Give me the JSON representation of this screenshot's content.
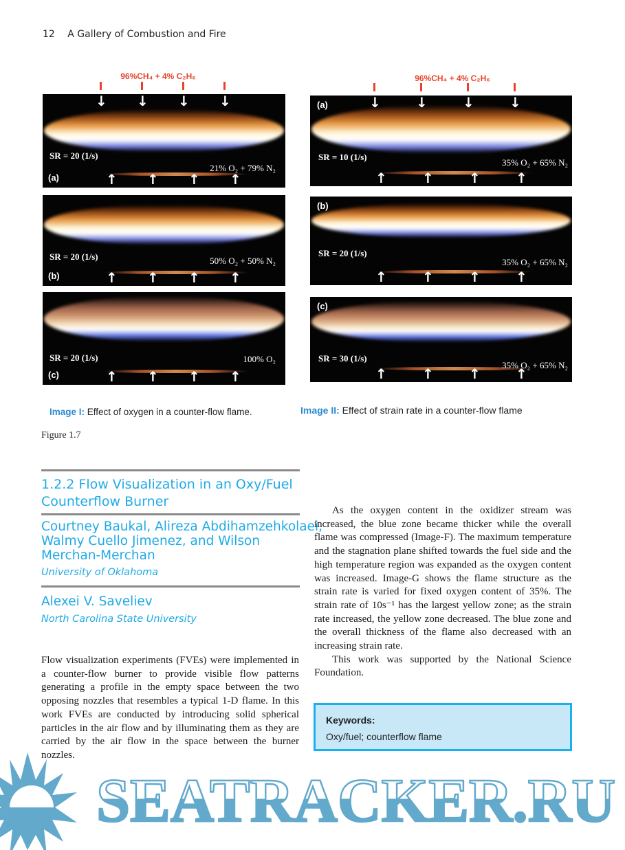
{
  "header": {
    "page_number": "12",
    "running_title": "A Gallery of Combustion and Fire"
  },
  "figure": {
    "fuel_label": "96%CH₄ + 4% C₂H₆",
    "left_panels": [
      {
        "tag": "(a)",
        "sr": "SR = 20 (1/s)",
        "oxidizer": "21% O₂ + 79% N₂"
      },
      {
        "tag": "(b)",
        "sr": "SR = 20 (1/s)",
        "oxidizer": "50% O₂ + 50% N₂"
      },
      {
        "tag": "(c)",
        "sr": "SR = 20 (1/s)",
        "oxidizer": "100% O₂"
      }
    ],
    "right_panels": [
      {
        "tag": "(a)",
        "sr": "SR = 10 (1/s)",
        "oxidizer": "35% O₂ + 65% N₂"
      },
      {
        "tag": "(b)",
        "sr": "SR = 20 (1/s)",
        "oxidizer": "35% O₂ + 65% N₂"
      },
      {
        "tag": "(c)",
        "sr": "SR = 30 (1/s)",
        "oxidizer": "35% O₂ + 65% N₂"
      }
    ],
    "caption_left": {
      "label": "Image I:",
      "text": " Effect of oxygen in a counter-flow flame."
    },
    "caption_right": {
      "label": "Image II:",
      "text": " Effect of strain rate in a counter-flow flame"
    },
    "figure_number": "Figure 1.7"
  },
  "section": {
    "title_line1": "1.2.2  Flow Visualization in an Oxy/Fuel",
    "title_line2": "Counterflow Burner",
    "authors_1": [
      "Courtney Baukal, Alireza Abdihamzehkolaei,",
      "Walmy Cuello Jimenez, and Wilson",
      "Merchan-Merchan"
    ],
    "affiliation_1": "University of Oklahoma",
    "authors_2": "Alexei V. Saveliev",
    "affiliation_2": "North Carolina State University"
  },
  "body": {
    "left_paragraph": "Flow visualization experiments (FVEs) were implemented in a counter-flow burner to provide visible flow patterns generating a profile in the empty space between the two opposing nozzles that resembles a typical 1-D flame. In this work FVEs are conducted by introducing solid spherical particles in the air flow and by illuminating them as they are carried by the air flow in the space between the burner nozzles.",
    "right_paragraph_1": "As the oxygen content in the oxidizer stream was increased, the blue zone became thicker while the overall flame was compressed (Image-F). The maximum temperature and the stagnation plane shifted towards the fuel side and the high temperature region was expanded as the oxygen content was increased. Image-G shows the flame structure as the strain rate is varied for fixed oxygen content of 35%. The strain rate of 10s⁻¹ has the largest yellow zone; as the strain rate increased, the yellow zone decreased. The blue zone and the overall thickness of the flame also decreased with an increasing strain rate.",
    "right_paragraph_2": "This work was supported by the National Science Foundation."
  },
  "keywords": {
    "title": "Keywords:",
    "value": "Oxy/fuel; counterflow flame"
  },
  "watermark": {
    "text": "SEATRACKER.RU",
    "color": "#62a9cb"
  },
  "colors": {
    "accent_blue": "#1faae6",
    "fuel_red": "#e8432a",
    "keyword_box_bg": "#c8e8f8"
  }
}
